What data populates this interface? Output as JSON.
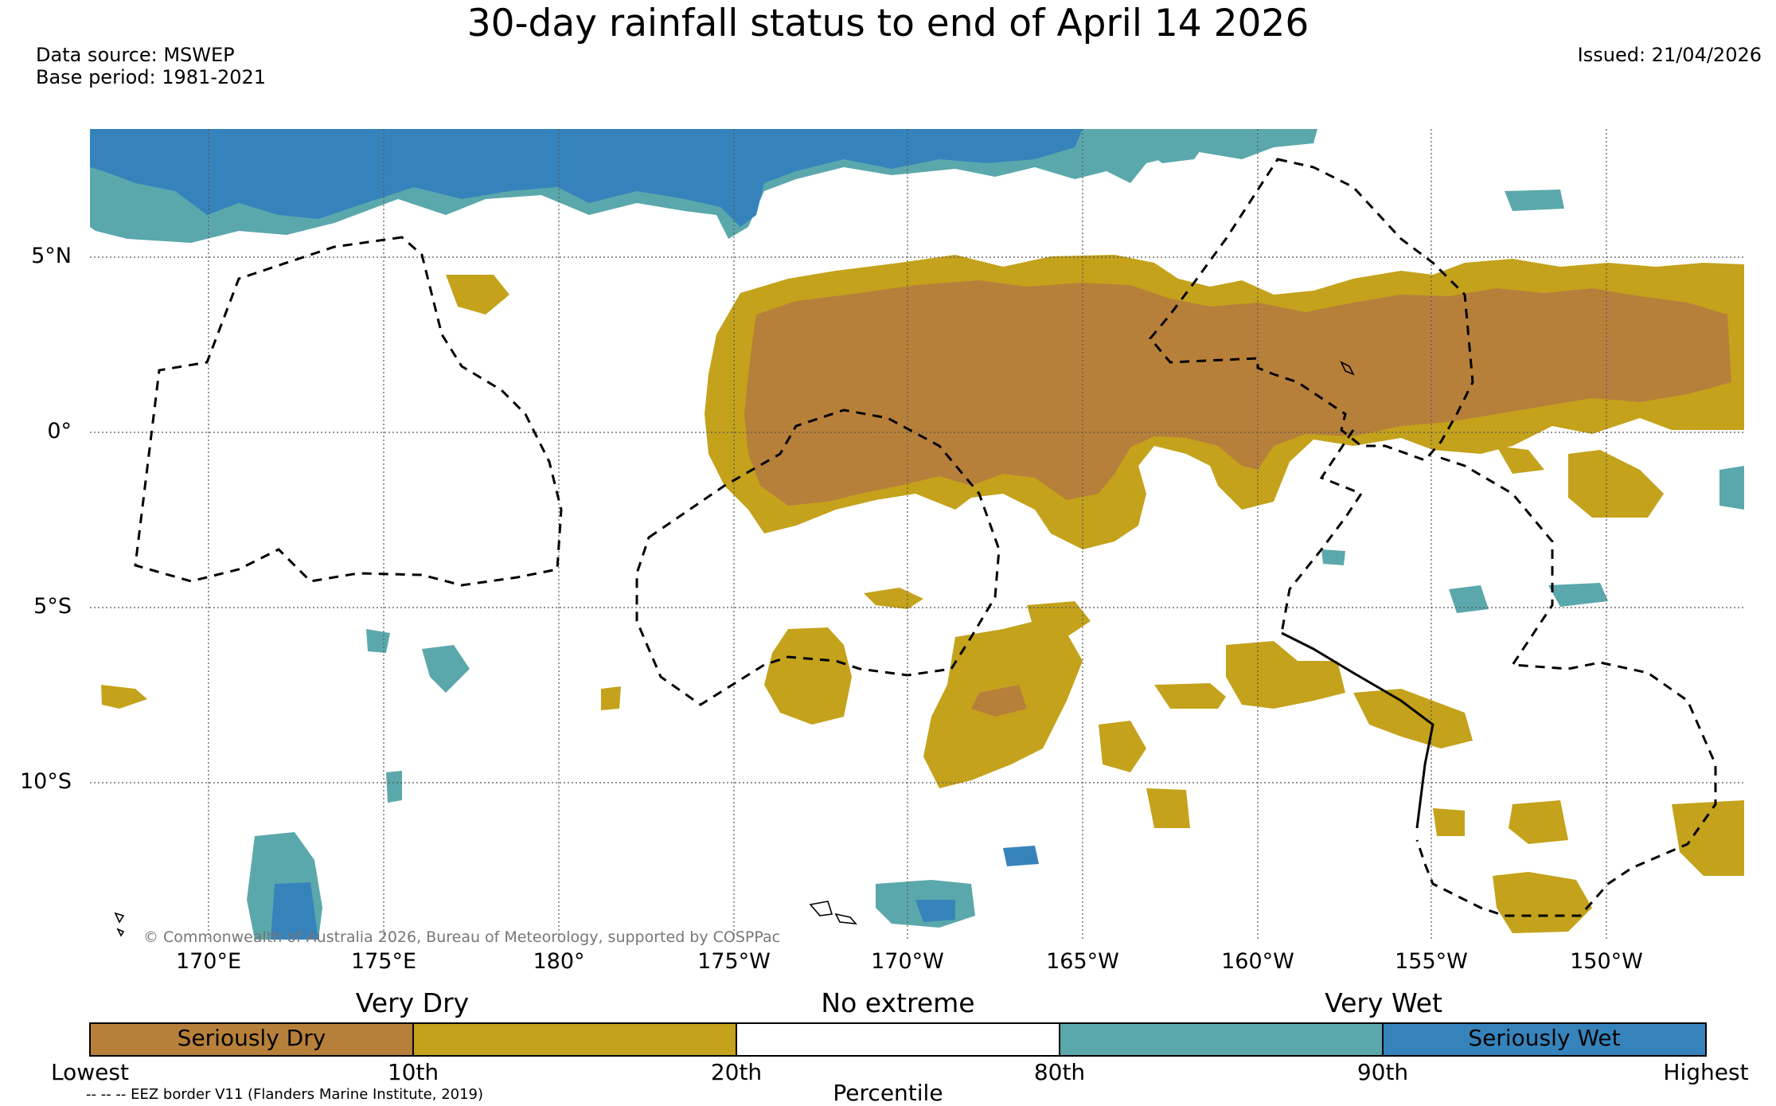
{
  "title": "30-day rainfall status to end of April 14 2026",
  "data_source": "Data source: MSWEP",
  "base_period": "Base period: 1981-2021",
  "issued": "Issued: 21/04/2026",
  "copyright": "© Commonwealth of Australia 2026, Bureau of Meteorology, supported by COSPPac",
  "eez_note": "-- -- -- EEZ border V11 (Flanders Marine Institute, 2019)",
  "lat_labels": [
    "5°N",
    "0°",
    "5°S",
    "10°S"
  ],
  "lon_labels": [
    "170°E",
    "175°E",
    "180°",
    "175°W",
    "170°W",
    "165°W",
    "160°W",
    "155°W",
    "150°W"
  ],
  "legend": {
    "categories": [
      "Very Dry",
      "No extreme",
      "Very Wet"
    ],
    "segments": [
      {
        "label": "Seriously Dry",
        "color": "#b7803a"
      },
      {
        "label": "",
        "color": "#c4a21b"
      },
      {
        "label": "",
        "color": "#ffffff"
      },
      {
        "label": "",
        "color": "#5ba8ac"
      },
      {
        "label": "Seriously Wet",
        "color": "#3683bc"
      }
    ],
    "percentiles": [
      "Lowest",
      "10th",
      "20th",
      "80th",
      "90th",
      "Highest"
    ],
    "xlabel": "Percentile"
  },
  "colors": {
    "seriously_dry": "#b7803a",
    "very_dry": "#c4a21b",
    "very_wet": "#5ba8ac",
    "seriously_wet": "#3683bc"
  }
}
